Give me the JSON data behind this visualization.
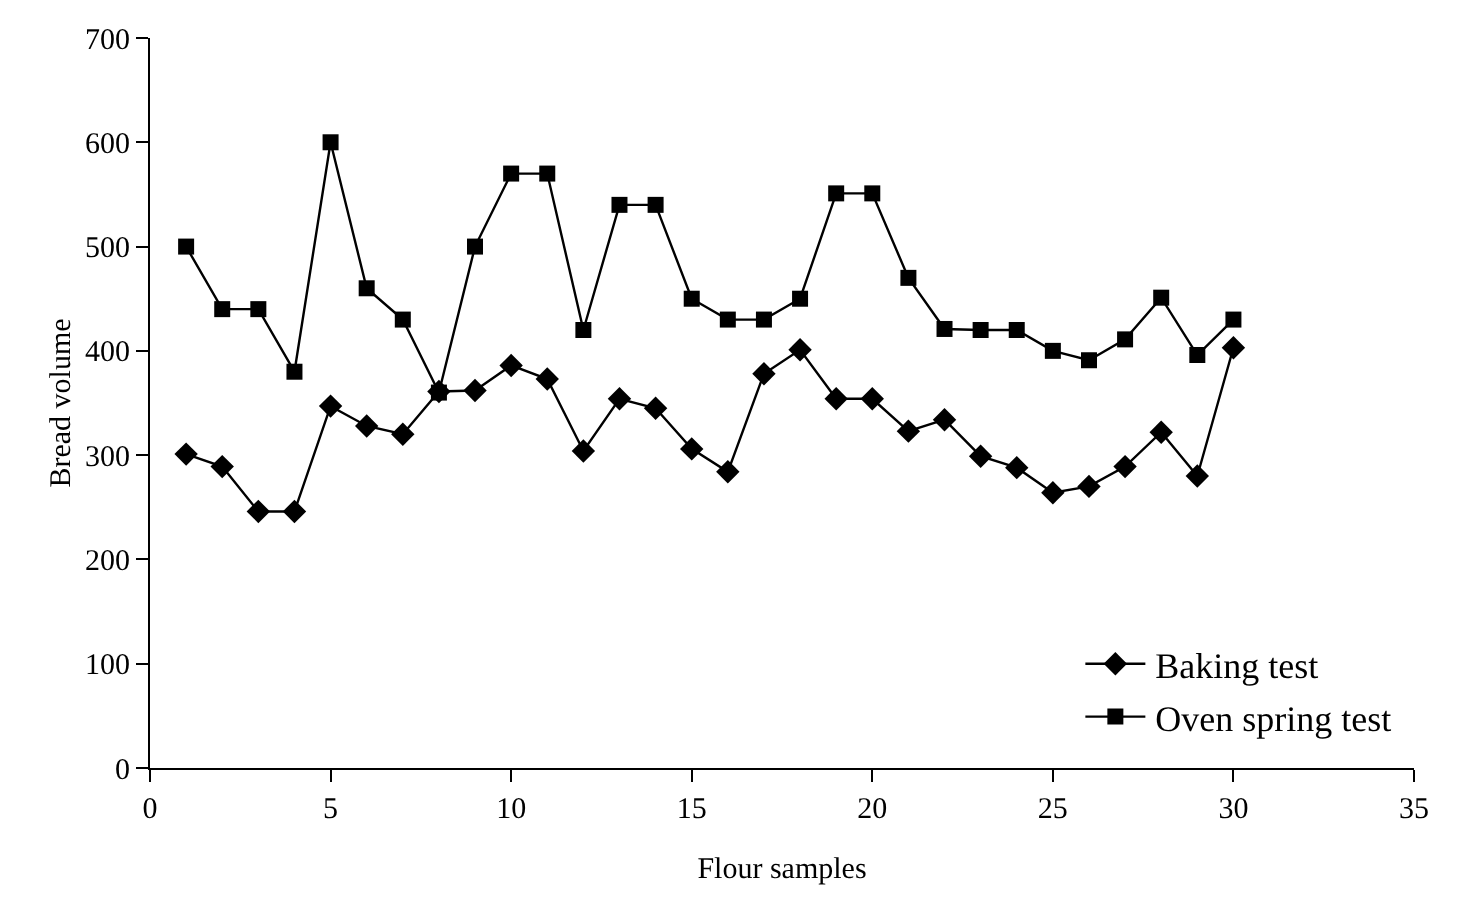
{
  "chart_data": {
    "type": "line",
    "xlabel": "Flour samples",
    "ylabel": "Bread volume",
    "x": [
      1,
      2,
      3,
      4,
      5,
      6,
      7,
      8,
      9,
      10,
      11,
      12,
      13,
      14,
      15,
      16,
      17,
      18,
      19,
      20,
      21,
      22,
      23,
      24,
      25,
      26,
      27,
      28,
      29,
      30
    ],
    "series": [
      {
        "name": "Baking test",
        "color": "#000000",
        "marker": "diamond",
        "values": [
          301,
          289,
          246,
          246,
          347,
          328,
          320,
          361,
          362,
          386,
          373,
          304,
          354,
          345,
          306,
          284,
          378,
          401,
          354,
          354,
          323,
          334,
          299,
          288,
          264,
          270,
          289,
          322,
          280,
          403
        ]
      },
      {
        "name": "Oven spring test",
        "color": "#000000",
        "marker": "square",
        "values": [
          500,
          440,
          440,
          380,
          600,
          460,
          430,
          360,
          500,
          570,
          570,
          420,
          540,
          540,
          450,
          430,
          430,
          450,
          551,
          551,
          470,
          421,
          420,
          420,
          400,
          391,
          411,
          451,
          396,
          430
        ]
      }
    ],
    "xlim": [
      0,
      35
    ],
    "xticks": [
      0,
      5,
      10,
      15,
      20,
      25,
      30,
      35
    ],
    "ylim": [
      0,
      700
    ],
    "yticks": [
      0,
      100,
      200,
      300,
      400,
      500,
      600,
      700
    ],
    "grid": false,
    "legend": "bottom right",
    "line_style": "solid"
  }
}
